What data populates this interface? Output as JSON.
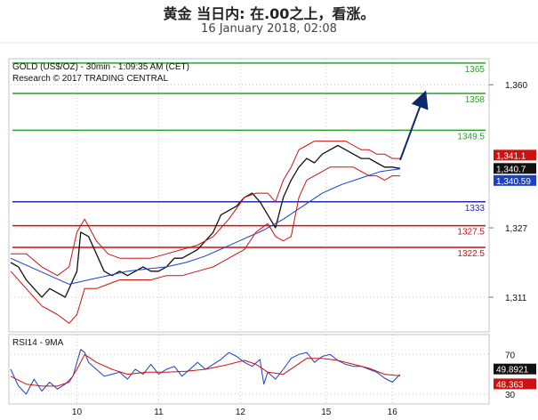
{
  "header": {
    "title": "黄金 当日内: 在.00之上，看涨。",
    "subtitle": "16 January 2018, 02:08"
  },
  "chart_data": {
    "type": "line",
    "instrument_label": "GOLD (US$/OZ) - 30min - 1:09:35 AM (CET)",
    "source_label": "Research © 2017 TRADING CENTRAL",
    "indicator_label": "RSI14 - 9MA",
    "x_ticks": [
      "10",
      "11",
      "12",
      "15",
      "16"
    ],
    "price_axis_ticks": [
      "1,360",
      "1,327",
      "1,311"
    ],
    "rsi_axis_ticks": [
      "70",
      "30"
    ],
    "price_ylim": [
      1303,
      1366
    ],
    "rsi_ylim": [
      20,
      90
    ],
    "levels": [
      {
        "label": "1365",
        "value": 1365,
        "color": "#2e9e2e"
      },
      {
        "label": "1358",
        "value": 1358,
        "color": "#2e9e2e"
      },
      {
        "label": "1349.5",
        "value": 1349.5,
        "color": "#2e9e2e"
      },
      {
        "label": "1333",
        "value": 1333,
        "color": "#2a2aa8"
      },
      {
        "label": "1327.5",
        "value": 1327.5,
        "color": "#cc1111"
      },
      {
        "label": "1322.5",
        "value": 1322.5,
        "color": "#cc1111"
      }
    ],
    "price_tags": [
      {
        "label": "1,341.1",
        "value": 1341.1,
        "color": "#cc1111"
      },
      {
        "label": "1,340.7",
        "value": 1340.7,
        "color": "#111111"
      },
      {
        "label": "1,340.59",
        "value": 1340.59,
        "color": "#1a3fc8"
      }
    ],
    "rsi_tags": [
      {
        "label": "49.8921",
        "value": 49.8921,
        "color": "#111111"
      },
      {
        "label": "48.363",
        "value": 48.363,
        "color": "#cc1111"
      }
    ],
    "series": [
      {
        "key": "price",
        "color": "#111111",
        "x": [
          0,
          2,
          4,
          6,
          8,
          10,
          12,
          14,
          15,
          16,
          17,
          18,
          20,
          22,
          24,
          26,
          28,
          30,
          32,
          34,
          36,
          38,
          40,
          42,
          44,
          46,
          48,
          50,
          52,
          54,
          56,
          58,
          60,
          62,
          64,
          66,
          68,
          70,
          72,
          74,
          76,
          78,
          80,
          82,
          84,
          86,
          88,
          90,
          92,
          94,
          96,
          98,
          100
        ],
        "values": [
          1319,
          1318,
          1315,
          1313,
          1311,
          1313,
          1312,
          1311,
          1313,
          1315,
          1317,
          1326,
          1325,
          1321,
          1317,
          1316,
          1317,
          1316,
          1317,
          1318,
          1317,
          1317,
          1318,
          1320,
          1320,
          1321,
          1322,
          1324,
          1326,
          1330,
          1331,
          1332,
          1334,
          1335,
          1333,
          1330,
          1327,
          1334,
          1338,
          1341,
          1343,
          1342,
          1344,
          1345,
          1346,
          1345,
          1344,
          1343,
          1343,
          1342,
          1341,
          1341,
          1340.7
        ]
      },
      {
        "key": "moving-average",
        "color": "#1a3fc8",
        "x": [
          0,
          5,
          10,
          15,
          20,
          25,
          30,
          35,
          40,
          45,
          50,
          55,
          60,
          65,
          70,
          75,
          80,
          85,
          90,
          95,
          100
        ],
        "values": [
          1320,
          1318,
          1316,
          1314,
          1315,
          1316,
          1317,
          1317.5,
          1318,
          1319,
          1320.5,
          1322.5,
          1324.5,
          1326.5,
          1329,
          1332,
          1335,
          1337,
          1338.5,
          1340,
          1340.59
        ]
      },
      {
        "key": "bollinger-upper",
        "color": "#cc1111",
        "x": [
          0,
          4,
          8,
          12,
          15,
          17,
          19,
          22,
          25,
          28,
          32,
          36,
          40,
          44,
          48,
          52,
          56,
          60,
          63,
          66,
          68,
          70,
          72,
          74,
          76,
          78,
          80,
          82,
          84,
          86,
          88,
          90,
          92,
          94,
          96,
          98,
          100
        ],
        "values": [
          1321,
          1321,
          1318,
          1316,
          1318,
          1326,
          1329,
          1324,
          1321,
          1320,
          1320,
          1320,
          1321,
          1322,
          1323,
          1325,
          1329,
          1334,
          1335,
          1335,
          1333,
          1338,
          1341,
          1345,
          1346,
          1347,
          1347,
          1347,
          1347,
          1347,
          1346,
          1345,
          1345,
          1344,
          1344,
          1343,
          1343
        ]
      },
      {
        "key": "bollinger-lower",
        "color": "#cc1111",
        "x": [
          0,
          4,
          8,
          12,
          15,
          17,
          19,
          22,
          25,
          28,
          32,
          36,
          40,
          44,
          48,
          52,
          56,
          60,
          63,
          66,
          68,
          70,
          72,
          74,
          76,
          78,
          80,
          82,
          84,
          86,
          88,
          90,
          92,
          94,
          96,
          98,
          100
        ],
        "values": [
          1317,
          1313,
          1309,
          1307,
          1305,
          1307,
          1313,
          1313,
          1314,
          1315,
          1315,
          1315,
          1316,
          1316,
          1317,
          1318,
          1320,
          1322,
          1326,
          1328,
          1325,
          1324,
          1325,
          1334,
          1338,
          1339,
          1340,
          1341,
          1341,
          1341,
          1341,
          1340,
          1339,
          1339,
          1338,
          1339,
          1339
        ]
      },
      {
        "key": "rsi",
        "color": "#1a3fc8",
        "x": [
          0,
          2,
          4,
          6,
          8,
          10,
          12,
          14,
          16,
          17,
          18,
          19,
          20,
          22,
          24,
          26,
          28,
          30,
          32,
          34,
          36,
          38,
          40,
          42,
          44,
          46,
          48,
          50,
          52,
          54,
          56,
          58,
          60,
          62,
          64,
          65,
          66,
          68,
          70,
          72,
          74,
          76,
          78,
          80,
          82,
          84,
          86,
          88,
          90,
          92,
          94,
          96,
          98,
          100
        ],
        "values": [
          55,
          38,
          30,
          45,
          33,
          42,
          35,
          40,
          48,
          62,
          75,
          72,
          62,
          55,
          48,
          50,
          52,
          45,
          55,
          50,
          60,
          50,
          55,
          58,
          48,
          55,
          62,
          55,
          60,
          65,
          72,
          68,
          62,
          58,
          65,
          40,
          52,
          45,
          55,
          66,
          70,
          72,
          62,
          68,
          70,
          64,
          60,
          58,
          58,
          55,
          52,
          46,
          42,
          49.89
        ]
      },
      {
        "key": "rsi-ma",
        "color": "#cc1111",
        "x": [
          0,
          4,
          8,
          12,
          15,
          17,
          19,
          22,
          26,
          30,
          35,
          40,
          45,
          50,
          55,
          60,
          63,
          66,
          70,
          73,
          76,
          80,
          84,
          88,
          92,
          96,
          100
        ],
        "values": [
          48,
          40,
          38,
          38,
          42,
          55,
          70,
          62,
          55,
          50,
          52,
          52,
          53,
          55,
          59,
          64,
          60,
          52,
          50,
          58,
          66,
          66,
          64,
          60,
          56,
          50,
          48.36
        ]
      }
    ],
    "forecast_arrow": {
      "from": [
        100,
        1341
      ],
      "to": [
        106,
        1358
      ]
    },
    "grid": true
  }
}
